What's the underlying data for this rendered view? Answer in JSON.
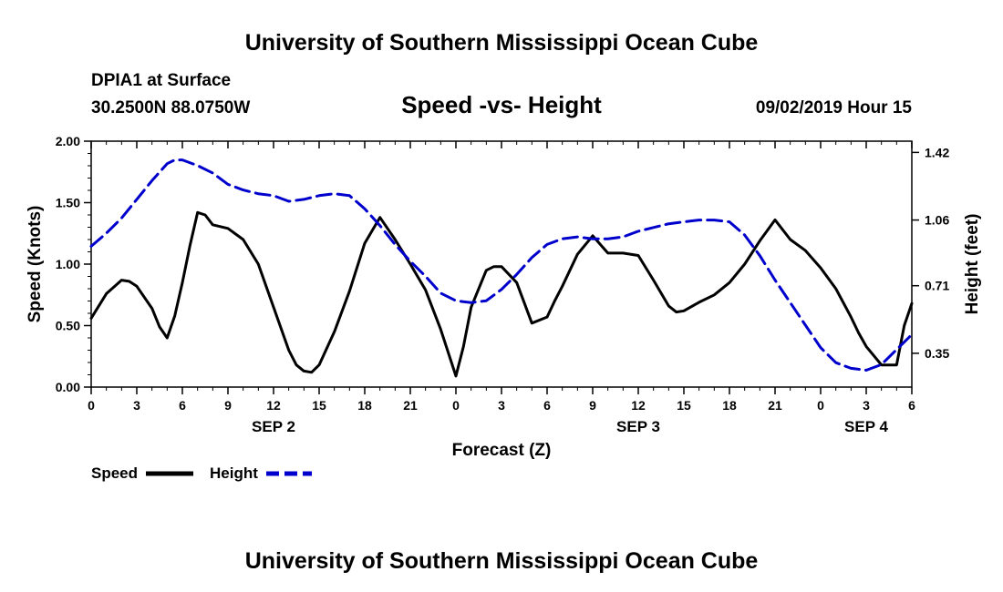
{
  "page": {
    "title_top": "University of Southern Mississippi Ocean Cube",
    "title_bottom": "University of Southern Mississippi Ocean Cube",
    "station": "DPIA1 at Surface",
    "coords": "30.2500N 88.0750W",
    "plot_title": "Speed -vs- Height",
    "datetime": "09/02/2019 Hour 15"
  },
  "chart_data": {
    "type": "line",
    "title": "Speed -vs- Height",
    "xlabel": "Forecast (Z)",
    "ylabel": "Speed (Knots)",
    "y2label": "Height (feet)",
    "x_range_hours": [
      0,
      54
    ],
    "ylim": [
      0,
      2
    ],
    "y2lim": [
      0.17,
      1.48
    ],
    "x_tick_labels": [
      "0",
      "3",
      "6",
      "9",
      "12",
      "15",
      "18",
      "21",
      "0",
      "3",
      "6",
      "9",
      "12",
      "15",
      "18",
      "21",
      "0",
      "3",
      "6"
    ],
    "y_tick_labels": [
      "0.00",
      "0.50",
      "1.00",
      "1.50",
      "2.00"
    ],
    "y_ticks": [
      0,
      0.5,
      1.0,
      1.5,
      2.0
    ],
    "y2_tick_labels": [
      "0.35",
      "0.71",
      "1.06",
      "1.42"
    ],
    "y2_ticks": [
      0.35,
      0.71,
      1.06,
      1.42
    ],
    "day_labels": [
      {
        "label": "SEP 2",
        "hour": 12
      },
      {
        "label": "SEP 3",
        "hour": 36
      },
      {
        "label": "SEP 4",
        "hour": 51
      }
    ],
    "legend": [
      {
        "name": "Speed",
        "color": "#000000",
        "style": "solid"
      },
      {
        "name": "Height",
        "color": "#0000cc",
        "style": "dashed"
      }
    ],
    "series": [
      {
        "name": "Speed",
        "axis": "left",
        "color": "#000000",
        "x": [
          0,
          1,
          2,
          2.5,
          3,
          4,
          4.5,
          5,
          5.5,
          6,
          6.5,
          7,
          7.5,
          8,
          9,
          10,
          11,
          12,
          13,
          13.5,
          14,
          14.5,
          15,
          16,
          17,
          18,
          19,
          20,
          21,
          22,
          23,
          24,
          24.5,
          25,
          26,
          26.5,
          27,
          28,
          29,
          30,
          30.5,
          31,
          32,
          33,
          34,
          35,
          36,
          37,
          38,
          38.5,
          39,
          40,
          41,
          42,
          43,
          44,
          45,
          46,
          47,
          48,
          49,
          50,
          50.5,
          51,
          52,
          53,
          53.5,
          54
        ],
        "values": [
          0.56,
          0.76,
          0.87,
          0.86,
          0.82,
          0.64,
          0.49,
          0.4,
          0.58,
          0.85,
          1.15,
          1.42,
          1.4,
          1.32,
          1.29,
          1.2,
          1.0,
          0.65,
          0.3,
          0.18,
          0.13,
          0.12,
          0.18,
          0.45,
          0.78,
          1.17,
          1.38,
          1.2,
          1.0,
          0.79,
          0.47,
          0.09,
          0.33,
          0.65,
          0.95,
          0.98,
          0.98,
          0.85,
          0.52,
          0.57,
          0.7,
          0.82,
          1.08,
          1.23,
          1.09,
          1.09,
          1.07,
          0.87,
          0.66,
          0.61,
          0.62,
          0.69,
          0.75,
          0.85,
          1.0,
          1.19,
          1.36,
          1.2,
          1.11,
          0.97,
          0.8,
          0.57,
          0.44,
          0.33,
          0.18,
          0.18,
          0.5,
          0.68
        ]
      },
      {
        "name": "Height",
        "axis": "right",
        "color": "#0000cc",
        "x": [
          0,
          1,
          2,
          3,
          4,
          5,
          5.5,
          6,
          7,
          8,
          9,
          10,
          11,
          12,
          13,
          14,
          15,
          16,
          17,
          18,
          19,
          20,
          21,
          22,
          23,
          24,
          25,
          26,
          27,
          28,
          29,
          30,
          31,
          32,
          33,
          34,
          35,
          36,
          37,
          38,
          39,
          40,
          41,
          42,
          43,
          44,
          45,
          46,
          47,
          48,
          49,
          50,
          51,
          52,
          53,
          54
        ],
        "values": [
          0.92,
          0.99,
          1.07,
          1.17,
          1.27,
          1.36,
          1.38,
          1.38,
          1.35,
          1.31,
          1.25,
          1.22,
          1.2,
          1.19,
          1.16,
          1.17,
          1.19,
          1.2,
          1.19,
          1.12,
          1.03,
          0.93,
          0.84,
          0.76,
          0.67,
          0.63,
          0.62,
          0.63,
          0.69,
          0.77,
          0.86,
          0.93,
          0.96,
          0.97,
          0.96,
          0.96,
          0.97,
          1.0,
          1.02,
          1.04,
          1.05,
          1.06,
          1.06,
          1.05,
          0.98,
          0.87,
          0.74,
          0.62,
          0.5,
          0.38,
          0.3,
          0.27,
          0.26,
          0.29,
          0.37,
          0.45
        ]
      }
    ]
  }
}
